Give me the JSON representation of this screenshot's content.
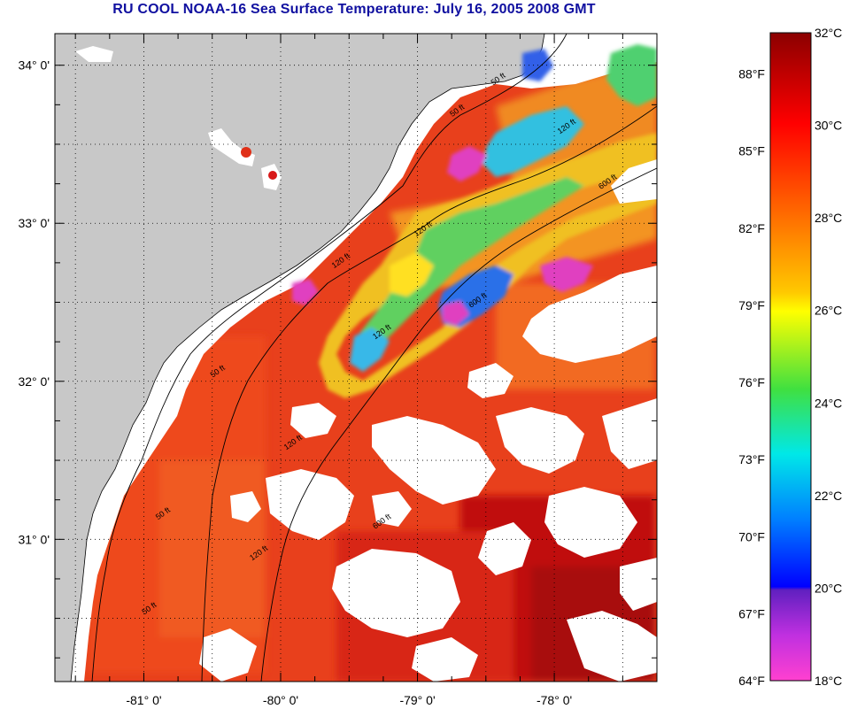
{
  "title": "RU COOL  NOAA-16  Sea Surface Temperature:  July 16, 2005 2008 GMT",
  "map": {
    "lon_range": [
      -81.65,
      -77.25
    ],
    "lat_range": [
      30.1,
      34.2
    ],
    "lon_ticks": [
      {
        "value": -81,
        "label": "-81° 0'"
      },
      {
        "value": -80,
        "label": "-80° 0'"
      },
      {
        "value": -79,
        "label": "-79° 0'"
      },
      {
        "value": -78,
        "label": "-78° 0'"
      }
    ],
    "lat_ticks": [
      {
        "value": 34,
        "label": "34° 0'"
      },
      {
        "value": 33,
        "label": "33° 0'"
      },
      {
        "value": 32,
        "label": "32° 0'"
      },
      {
        "value": 31,
        "label": "31° 0'"
      }
    ],
    "gridlines": true,
    "land_color": "#c8c8c8",
    "cloud_color": "#ffffff",
    "contour_labels": [
      {
        "text": "50 ft",
        "lon": -78.4,
        "lat": 33.9
      },
      {
        "text": "50 ft",
        "lon": -78.7,
        "lat": 33.7
      },
      {
        "text": "120 ft",
        "lon": -77.9,
        "lat": 33.6
      },
      {
        "text": "600 ft",
        "lon": -77.6,
        "lat": 33.25
      },
      {
        "text": "120 ft",
        "lon": -78.95,
        "lat": 32.95
      },
      {
        "text": "120 ft",
        "lon": -79.55,
        "lat": 32.75
      },
      {
        "text": "600 ft",
        "lon": -78.55,
        "lat": 32.5
      },
      {
        "text": "120 ft",
        "lon": -79.25,
        "lat": 32.3
      },
      {
        "text": "50 ft",
        "lon": -80.45,
        "lat": 32.05
      },
      {
        "text": "120 ft",
        "lon": -79.9,
        "lat": 31.6
      },
      {
        "text": "50 ft",
        "lon": -80.85,
        "lat": 31.15
      },
      {
        "text": "600 ft",
        "lon": -79.25,
        "lat": 31.1
      },
      {
        "text": "120 ft",
        "lon": -80.15,
        "lat": 30.9
      },
      {
        "text": "50 ft",
        "lon": -80.95,
        "lat": 30.55
      }
    ]
  },
  "colorbar": {
    "celsius_range": [
      18,
      32
    ],
    "celsius_labels": [
      "32°C",
      "30°C",
      "28°C",
      "26°C",
      "24°C",
      "22°C",
      "20°C",
      "18°C"
    ],
    "celsius_values": [
      32,
      30,
      28,
      26,
      24,
      22,
      20,
      18
    ],
    "fahrenheit_labels": [
      "88°F",
      "85°F",
      "82°F",
      "79°F",
      "76°F",
      "73°F",
      "70°F",
      "67°F",
      "64°F"
    ],
    "fahrenheit_values": [
      88,
      85,
      82,
      79,
      76,
      73,
      70,
      67,
      64
    ]
  }
}
